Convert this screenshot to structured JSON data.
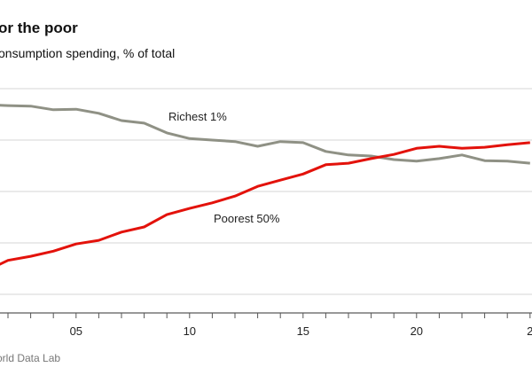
{
  "title": "or the poor",
  "subtitle": "onsumption spending, % of total",
  "source": "orld Data Lab",
  "chart_data": {
    "type": "line",
    "title": "or the poor",
    "subtitle": "onsumption spending, % of total",
    "xlabel": "",
    "ylabel": "",
    "grid": true,
    "x_ticks": [
      {
        "year": 2005,
        "label": "05"
      },
      {
        "year": 2010,
        "label": "10"
      },
      {
        "year": 2015,
        "label": "15"
      },
      {
        "year": 2020,
        "label": "20"
      },
      {
        "year": 2025,
        "label": "2"
      }
    ],
    "ylim": [
      0,
      4
    ],
    "gridlines": [
      0,
      1,
      2,
      3,
      4
    ],
    "x": [
      2001,
      2002,
      2003,
      2004,
      2005,
      2006,
      2007,
      2008,
      2009,
      2010,
      2011,
      2012,
      2013,
      2014,
      2015,
      2016,
      2017,
      2018,
      2019,
      2020,
      2021,
      2022,
      2023,
      2024,
      2025
    ],
    "series": [
      {
        "name": "Richest 1%",
        "color": "#8f9185",
        "values": [
          3.69,
          3.67,
          3.66,
          3.59,
          3.6,
          3.52,
          3.38,
          3.33,
          3.14,
          3.03,
          3.0,
          2.97,
          2.88,
          2.97,
          2.95,
          2.78,
          2.71,
          2.69,
          2.62,
          2.59,
          2.64,
          2.71,
          2.6,
          2.59,
          2.55
        ]
      },
      {
        "name": "Poorest 50%",
        "color": "#e3120b",
        "values": [
          0.45,
          0.66,
          0.74,
          0.84,
          0.98,
          1.05,
          1.21,
          1.31,
          1.55,
          1.67,
          1.78,
          1.91,
          2.1,
          2.22,
          2.34,
          2.52,
          2.55,
          2.64,
          2.72,
          2.84,
          2.88,
          2.84,
          2.86,
          2.91,
          2.95
        ]
      }
    ]
  }
}
